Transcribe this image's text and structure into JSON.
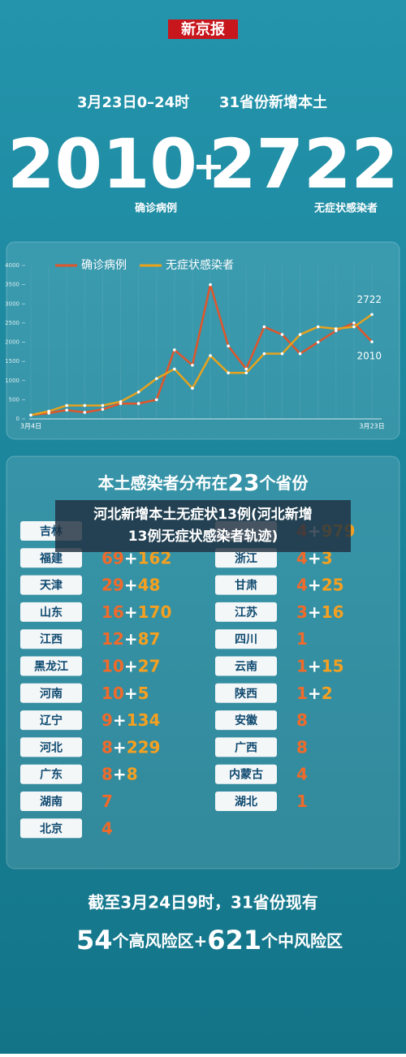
{
  "header": {
    "brand": "新京报",
    "date": "3月23日0–24时",
    "subtitle": "31省份新增本土",
    "confirmed": "2010",
    "plus": "+",
    "asymptomatic": "2722",
    "confirmed_label": "确诊病例",
    "asymptomatic_label": "无症状感染者"
  },
  "chart_data": {
    "type": "line",
    "categories": [
      "3月4日",
      null,
      null,
      null,
      null,
      null,
      null,
      null,
      null,
      null,
      null,
      null,
      null,
      null,
      null,
      null,
      null,
      null,
      null,
      "3月23日"
    ],
    "series": [
      {
        "name": "确诊病例",
        "color": "#e0552a",
        "values": [
          100,
          150,
          230,
          170,
          250,
          400,
          400,
          500,
          1800,
          1400,
          3500,
          1900,
          1300,
          2400,
          2200,
          1700,
          2000,
          2300,
          2500,
          2010
        ]
      },
      {
        "name": "无症状感染者",
        "color": "#e8a21c",
        "values": [
          100,
          200,
          350,
          350,
          350,
          450,
          700,
          1050,
          1300,
          800,
          1650,
          1200,
          1200,
          1700,
          1700,
          2200,
          2400,
          2350,
          2400,
          2722
        ]
      }
    ],
    "ylim": [
      0,
      4000
    ],
    "yticks": [
      0,
      500,
      1000,
      1500,
      2000,
      2500,
      3000,
      3500,
      4000
    ],
    "grid": false,
    "legend": "top"
  },
  "distribution": {
    "title_before": "本土感染者分布在",
    "count": "23",
    "title_after": "个省份",
    "left": [
      {
        "name": "吉林",
        "value": null
      },
      {
        "name": "福建",
        "value": "69+162"
      },
      {
        "name": "天津",
        "value": "29+48"
      },
      {
        "name": "山东",
        "value": "16+170"
      },
      {
        "name": "江西",
        "value": "12+87"
      },
      {
        "name": "黑龙江",
        "value": "10+27"
      },
      {
        "name": "河南",
        "value": "10+5"
      },
      {
        "name": "辽宁",
        "value": "9+134"
      },
      {
        "name": "河北",
        "value": "8+229"
      },
      {
        "name": "广东",
        "value": "8+8"
      },
      {
        "name": "湖南",
        "value": "7"
      },
      {
        "name": "北京",
        "value": "4"
      }
    ],
    "right": [
      {
        "name": null,
        "value": "4+979"
      },
      {
        "name": "浙江",
        "value": "4+3"
      },
      {
        "name": "甘肃",
        "value": "4+25"
      },
      {
        "name": "江苏",
        "value": "3+16"
      },
      {
        "name": "四川",
        "value": "1"
      },
      {
        "name": "云南",
        "value": "1+15"
      },
      {
        "name": "陕西",
        "value": "1+2"
      },
      {
        "name": "安徽",
        "value": "8"
      },
      {
        "name": "广西",
        "value": "8"
      },
      {
        "name": "内蒙古",
        "value": "4"
      },
      {
        "name": "湖北",
        "value": "1"
      }
    ]
  },
  "overlay": {
    "line1": "河北新增本土无症状13例(河北新增",
    "line2": "13例无症状感染者轨迹)"
  },
  "footer": {
    "line1": "截至3月24日9时，31省份现有",
    "high": "54",
    "high_text": "个高风险区+",
    "medium": "621",
    "medium_text": "个中风险区"
  }
}
